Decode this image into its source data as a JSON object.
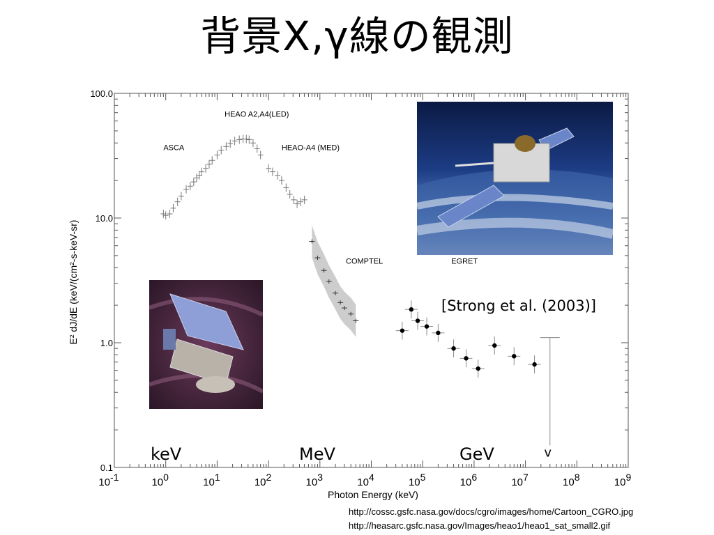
{
  "slide": {
    "title": "背景X,γ線の観測",
    "citation": "[Strong et al. (2003)]",
    "band_labels": [
      "keV",
      "MeV",
      "GeV"
    ],
    "sources": [
      "http://cossc.gsfc.nasa.gov/docs/cgro/images/home/Cartoon_CGRO.jpg",
      "http://heasarc.gsfc.nasa.gov/Images/heao1/heao1_sat_small2.gif"
    ]
  },
  "chart_data": {
    "type": "scatter",
    "xlabel": "Photon Energy (keV)",
    "ylabel": "E² dJ/dE (keV/(cm²-s-keV-sr)",
    "xscale": "log",
    "yscale": "log",
    "xlim": [
      0.1,
      1000000000
    ],
    "ylim": [
      0.1,
      100
    ],
    "x_ticks": [
      {
        "value": 0.1,
        "base": "10",
        "exp": "-1"
      },
      {
        "value": 1,
        "base": "10",
        "exp": "0"
      },
      {
        "value": 10,
        "base": "10",
        "exp": "1"
      },
      {
        "value": 100,
        "base": "10",
        "exp": "2"
      },
      {
        "value": 1000,
        "base": "10",
        "exp": "3"
      },
      {
        "value": 10000,
        "base": "10",
        "exp": "4"
      },
      {
        "value": 100000,
        "base": "10",
        "exp": "5"
      },
      {
        "value": 1000000,
        "base": "10",
        "exp": "6"
      },
      {
        "value": 10000000,
        "base": "10",
        "exp": "7"
      },
      {
        "value": 100000000,
        "base": "10",
        "exp": "8"
      },
      {
        "value": 1000000000,
        "base": "10",
        "exp": "9"
      }
    ],
    "y_ticks": [
      {
        "value": 0.1,
        "label": "0.1"
      },
      {
        "value": 1,
        "label": "1.0"
      },
      {
        "value": 10,
        "label": "10.0"
      },
      {
        "value": 100,
        "label": "100.0"
      }
    ],
    "instrument_labels": [
      {
        "text": "HEAO A2,A4(LED)",
        "x": 14,
        "y": 65
      },
      {
        "text": "ASCA",
        "x": 0.9,
        "y": 35
      },
      {
        "text": "HEAO-A4 (MED)",
        "x": 180,
        "y": 35
      },
      {
        "text": "COMPTEL",
        "x": 3200,
        "y": 4.3
      },
      {
        "text": "EGRET",
        "x": 360000,
        "y": 4.3
      }
    ],
    "series": [
      {
        "name": "ASCA",
        "x": [
          0.9,
          1.0,
          1.2,
          1.4,
          1.7,
          2.0,
          2.5,
          3.0,
          3.5,
          4.0,
          4.5,
          5.0,
          6.0,
          7.0
        ],
        "y": [
          10.8,
          10.5,
          10.8,
          12.0,
          13.5,
          15.0,
          17.0,
          18.0,
          19.5,
          21.0,
          22.0,
          23.5,
          25.0,
          27.0
        ]
      },
      {
        "name": "HEAO A2,A4(LED)",
        "x": [
          8,
          10,
          12,
          15,
          18,
          22,
          27,
          32,
          37,
          42,
          50,
          60,
          70
        ],
        "y": [
          29,
          32,
          35,
          37.5,
          39.5,
          41.5,
          42.5,
          43,
          43,
          42.5,
          40,
          36,
          32
        ]
      },
      {
        "name": "HEAO-A4 (MED)",
        "x": [
          100,
          120,
          150,
          180,
          220,
          260,
          310,
          360,
          420,
          500
        ],
        "y": [
          25,
          23.5,
          22,
          20,
          17.5,
          15.5,
          14,
          13,
          13.5,
          14
        ]
      },
      {
        "name": "COMPTEL",
        "x": [
          700,
          900,
          1200,
          1500,
          2000,
          2500,
          3000,
          4000,
          5000
        ],
        "y": [
          6.5,
          4.8,
          3.8,
          3.1,
          2.5,
          2.1,
          1.9,
          1.7,
          1.5
        ]
      },
      {
        "name": "EGRET",
        "x": [
          40000,
          60000,
          80000,
          120000,
          200000,
          400000,
          700000,
          1200000,
          2500000,
          6000000,
          15000000
        ],
        "y": [
          1.25,
          1.85,
          1.5,
          1.35,
          1.2,
          0.9,
          0.75,
          0.62,
          0.95,
          0.78,
          0.67
        ]
      },
      {
        "name": "upper limit",
        "x": [
          30000000
        ],
        "y": [
          1.1
        ],
        "marker": "v"
      }
    ]
  }
}
